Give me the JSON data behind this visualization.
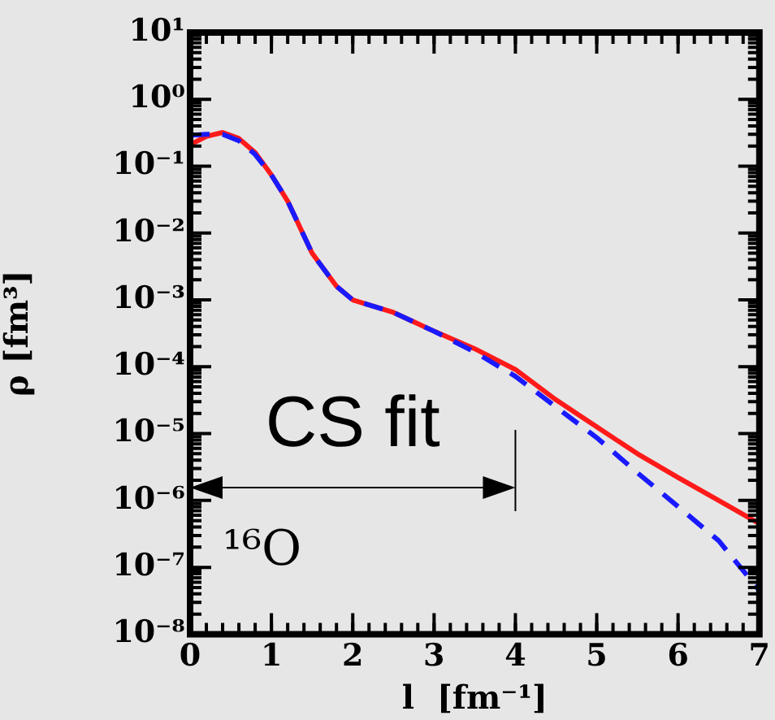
{
  "chart_data": {
    "type": "line",
    "xlabel": "l  [fm⁻¹]",
    "ylabel": "ρ [fm³]",
    "log": "y",
    "xlim": [
      0,
      7
    ],
    "xticks": [
      0,
      1,
      2,
      3,
      4,
      5,
      6,
      7
    ],
    "ylim": [
      1e-08,
      10
    ],
    "yticks": [
      {
        "value": 1e-08,
        "label": "10⁻⁸"
      },
      {
        "value": 1e-07,
        "label": "10⁻⁷"
      },
      {
        "value": 1e-06,
        "label": "10⁻⁶"
      },
      {
        "value": 1e-05,
        "label": "10⁻⁵"
      },
      {
        "value": 0.0001,
        "label": "10⁻⁴"
      },
      {
        "value": 0.001,
        "label": "10⁻³"
      },
      {
        "value": 0.01,
        "label": "10⁻²"
      },
      {
        "value": 0.1,
        "label": "10⁻¹"
      },
      {
        "value": 1,
        "label": "10⁰"
      },
      {
        "value": 10,
        "label": "10¹"
      }
    ],
    "x": [
      0,
      0.2,
      0.4,
      0.6,
      0.8,
      1,
      1.2,
      1.5,
      1.8,
      2,
      2.5,
      3,
      3.5,
      4,
      4.5,
      5,
      5.5,
      6,
      6.5,
      7
    ],
    "series": [
      {
        "color": "#1a1aff",
        "line_style": "dashed",
        "values": [
          0.29,
          0.3,
          0.3,
          0.24,
          0.15,
          0.074,
          0.03,
          0.005,
          0.0016,
          0.001,
          0.00065,
          0.00034,
          0.000166,
          7.2e-05,
          2.5e-05,
          8.7e-06,
          2.6e-06,
          8.1e-07,
          2.5e-07,
          4.5e-08
        ]
      },
      {
        "color": "#ff1a1a",
        "line_style": "solid",
        "values": [
          0.21,
          0.28,
          0.32,
          0.26,
          0.16,
          0.074,
          0.03,
          0.005,
          0.0016,
          0.001,
          0.00065,
          0.00034,
          0.000186,
          9.1e-05,
          3.2e-05,
          1.26e-05,
          5e-06,
          2.2e-06,
          1e-06,
          4.5e-07
        ]
      }
    ],
    "ref_lines": [
      {
        "axis": "x",
        "value": 4,
        "label": "CS fit"
      }
    ],
    "annotations": [
      "¹⁶O"
    ],
    "grid": false,
    "legend": false,
    "marker": "none"
  }
}
